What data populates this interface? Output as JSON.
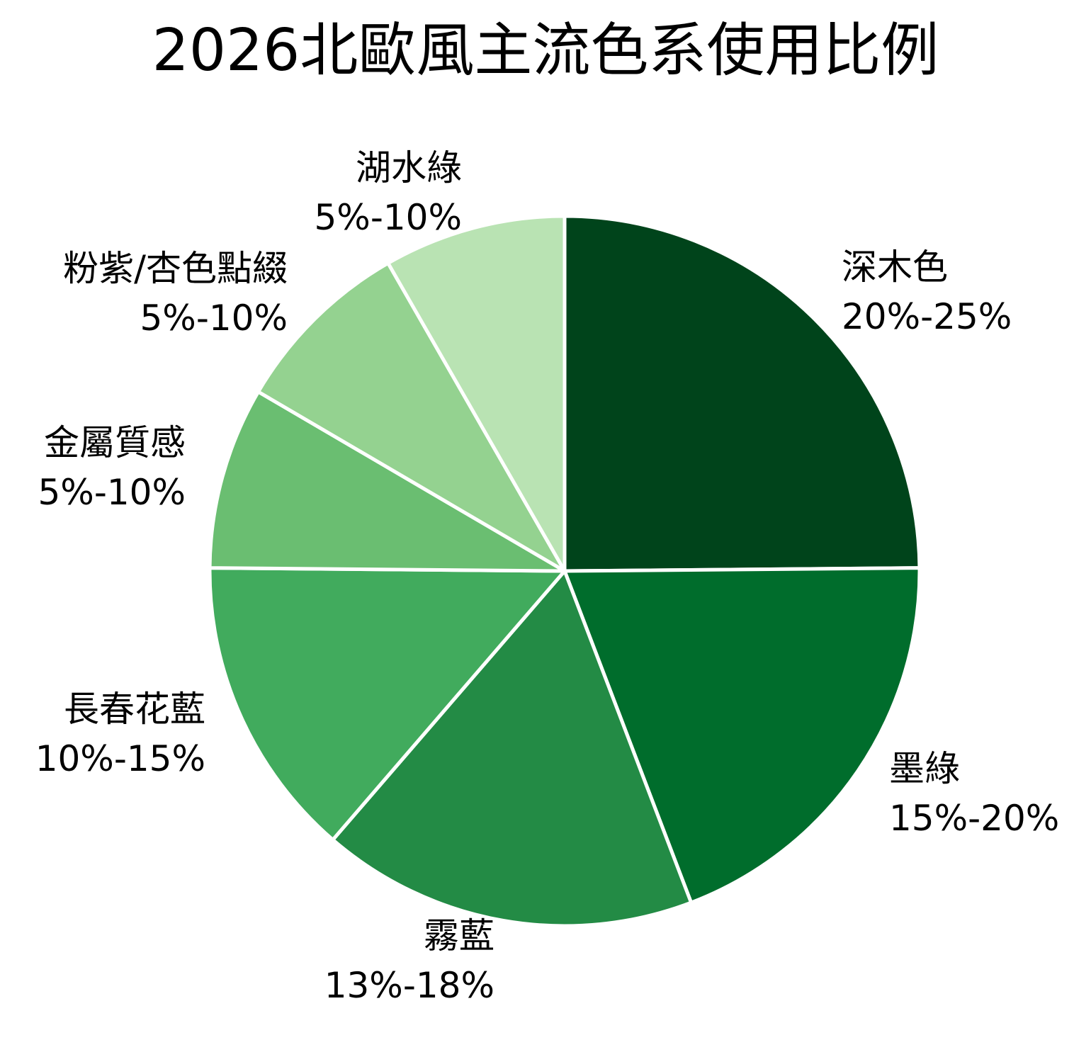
{
  "chart_data": {
    "type": "pie",
    "title": "2026北歐風主流色系使用比例",
    "start_angle": "top (90°), clockwise",
    "categories": [
      "深木色",
      "墨綠",
      "霧藍",
      "長春花藍",
      "金屬質感",
      "粉紫/杏色點綴",
      "湖水綠"
    ],
    "range_labels": [
      "20%-25%",
      "15%-20%",
      "13%-18%",
      "10%-15%",
      "5%-10%",
      "5%-10%",
      "5%-10%"
    ],
    "values": [
      22.5,
      17.5,
      15.5,
      12.5,
      7.5,
      7.5,
      7.5
    ],
    "colors": [
      "#00441b",
      "#006d2c",
      "#238b45",
      "#41ab5d",
      "#6abe71",
      "#94d290",
      "#b9e3b3"
    ],
    "slice_border_color": "#ffffff",
    "legend": "none (labels placed outside slices)"
  },
  "labels": [
    {
      "name": "深木色",
      "pct": "20%-25%"
    },
    {
      "name": "墨綠",
      "pct": "15%-20%"
    },
    {
      "name": "霧藍",
      "pct": "13%-18%"
    },
    {
      "name": "長春花藍",
      "pct": "10%-15%"
    },
    {
      "name": "金屬質感",
      "pct": "5%-10%"
    },
    {
      "name": "粉紫/杏色點綴",
      "pct": "5%-10%"
    },
    {
      "name": "湖水綠",
      "pct": "5%-10%"
    }
  ]
}
